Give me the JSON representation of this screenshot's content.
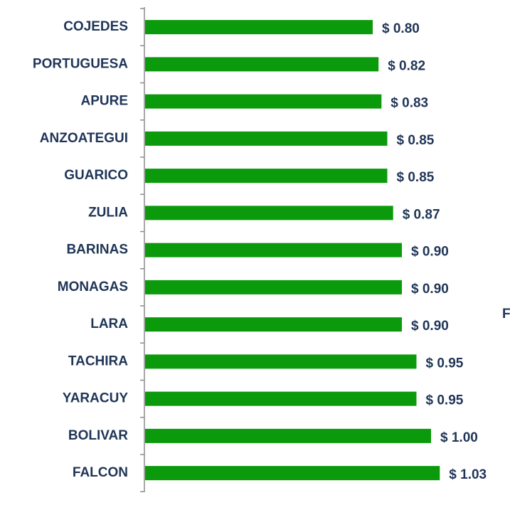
{
  "chart_data": {
    "type": "bar",
    "orientation": "horizontal",
    "categories": [
      "COJEDES",
      "PORTUGUESA",
      "APURE",
      "ANZOATEGUI",
      "GUARICO",
      "ZULIA",
      "BARINAS",
      "MONAGAS",
      "LARA",
      "TACHIRA",
      "YARACUY",
      "BOLIVAR",
      "FALCON"
    ],
    "values": [
      0.8,
      0.82,
      0.83,
      0.85,
      0.85,
      0.87,
      0.9,
      0.9,
      0.9,
      0.95,
      0.95,
      1.0,
      1.03
    ],
    "value_labels": [
      "$ 0.80",
      "$ 0.82",
      "$ 0.83",
      "$ 0.85",
      "$ 0.85",
      "$ 0.87",
      "$ 0.90",
      "$ 0.90",
      "$ 0.90",
      "$ 0.95",
      "$ 0.95",
      "$ 1.00",
      "$ 1.03"
    ],
    "color": "#0b9a0b",
    "annotation": "F"
  }
}
